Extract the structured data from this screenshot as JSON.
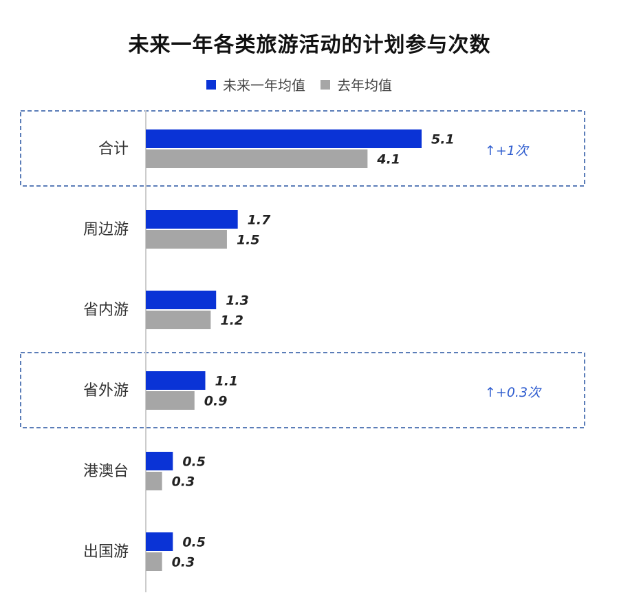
{
  "chart_data": {
    "type": "bar",
    "orientation": "horizontal",
    "title": "未来一年各类旅游活动的计划参与次数",
    "categories": [
      "合计",
      "周边游",
      "省内游",
      "省外游",
      "港澳台",
      "出国游"
    ],
    "series": [
      {
        "name": "未来一年均值",
        "values": [
          5.1,
          1.7,
          1.3,
          1.1,
          0.5,
          0.5
        ],
        "value_labels": [
          "5.1",
          "1.7",
          "1.3",
          "1.1",
          "0.5",
          "0.5"
        ]
      },
      {
        "name": "去年均值",
        "values": [
          4.1,
          1.5,
          1.2,
          0.9,
          0.3,
          0.3
        ],
        "value_labels": [
          "4.1",
          "1.5",
          "1.2",
          "0.9",
          "0.3",
          "0.3"
        ]
      }
    ],
    "annotations": [
      {
        "category": "合计",
        "text": "↑+1次"
      },
      {
        "category": "省外游",
        "text": "↑+0.3次"
      }
    ],
    "highlighted_categories": [
      "合计",
      "省外游"
    ],
    "xlim": [
      0,
      5.1
    ],
    "grid": false,
    "legend_position": "top"
  },
  "colors": {
    "series1": "#0a33d6",
    "series2": "#a6a6a6",
    "highlight_border": "#5b7db8",
    "annotation": "#2e5ccf",
    "axis": "#cccccc"
  }
}
